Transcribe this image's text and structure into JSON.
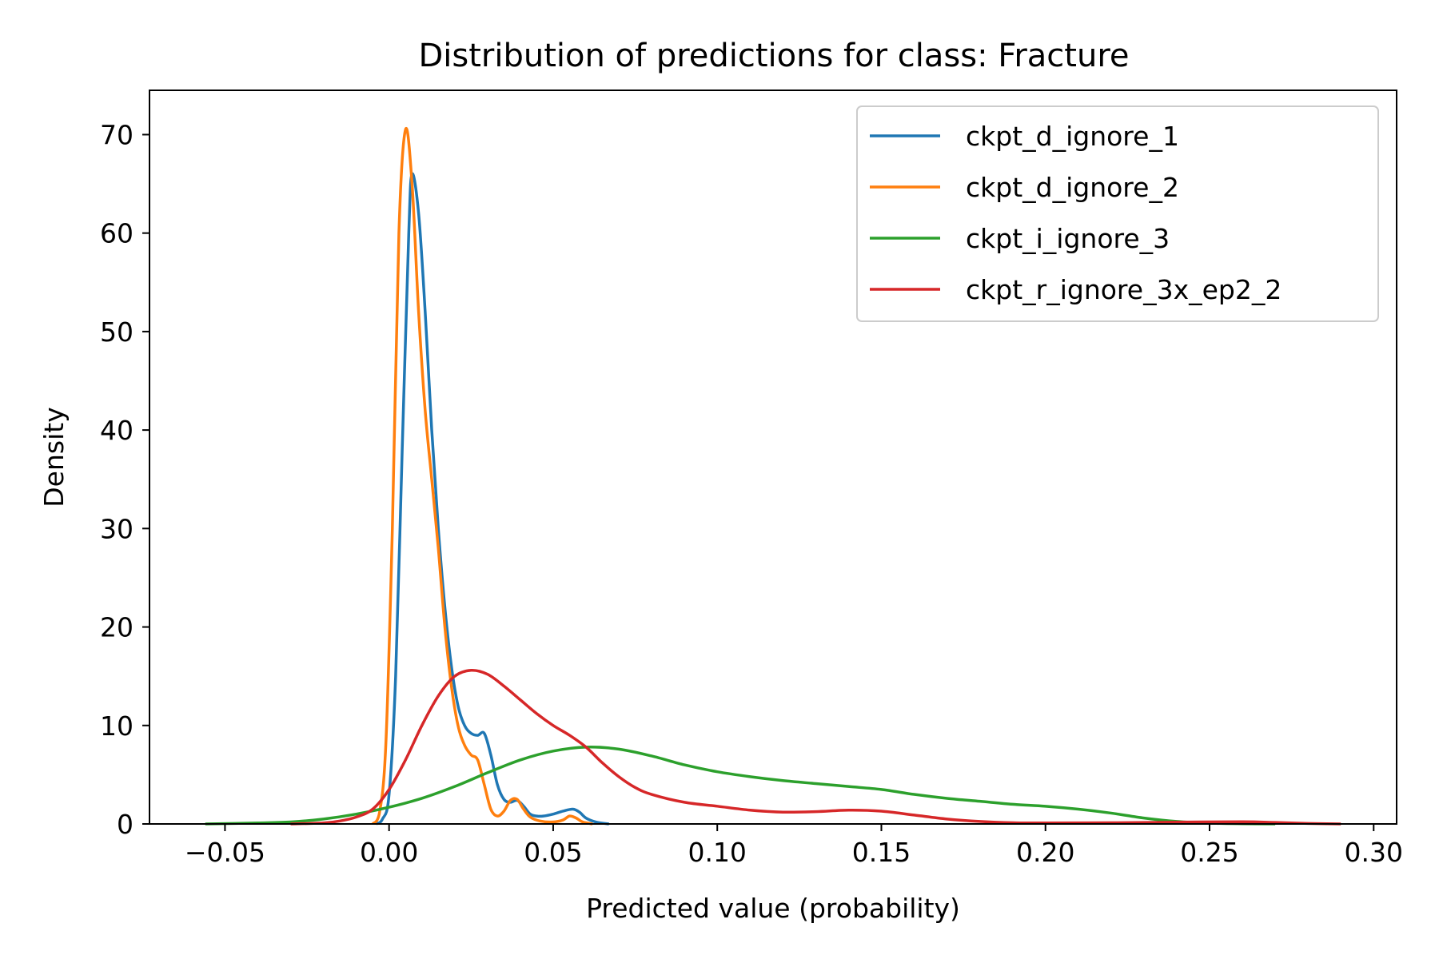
{
  "chart_data": {
    "type": "line",
    "title": "Distribution of predictions for class: Fracture",
    "xlabel": "Predicted value (probability)",
    "ylabel": "Density",
    "xlim": [
      -0.073,
      0.307
    ],
    "ylim": [
      0,
      74.5
    ],
    "x_ticks": [
      -0.05,
      0.0,
      0.05,
      0.1,
      0.15,
      0.2,
      0.25,
      0.3
    ],
    "x_tick_labels": [
      "−0.05",
      "0.00",
      "0.05",
      "0.10",
      "0.15",
      "0.20",
      "0.25",
      "0.30"
    ],
    "y_ticks": [
      0,
      10,
      20,
      30,
      40,
      50,
      60,
      70
    ],
    "y_tick_labels": [
      "0",
      "10",
      "20",
      "30",
      "40",
      "50",
      "60",
      "70"
    ],
    "grid": false,
    "legend_position": "top-right",
    "series": [
      {
        "name": "ckpt_d_ignore_1",
        "color": "#1f77b4",
        "points": [
          [
            -0.004,
            0
          ],
          [
            -0.002,
            0.5
          ],
          [
            0.0,
            3
          ],
          [
            0.002,
            15
          ],
          [
            0.004,
            38
          ],
          [
            0.006,
            60
          ],
          [
            0.007,
            66
          ],
          [
            0.009,
            62
          ],
          [
            0.011,
            52
          ],
          [
            0.013,
            40
          ],
          [
            0.015,
            30
          ],
          [
            0.017,
            22
          ],
          [
            0.019,
            16
          ],
          [
            0.021,
            12
          ],
          [
            0.023,
            10
          ],
          [
            0.025,
            9.2
          ],
          [
            0.027,
            9
          ],
          [
            0.029,
            9.2
          ],
          [
            0.031,
            7
          ],
          [
            0.033,
            4
          ],
          [
            0.035,
            2.5
          ],
          [
            0.037,
            2.2
          ],
          [
            0.039,
            2.4
          ],
          [
            0.041,
            1.8
          ],
          [
            0.043,
            1.0
          ],
          [
            0.045,
            0.8
          ],
          [
            0.047,
            0.8
          ],
          [
            0.05,
            1.0
          ],
          [
            0.053,
            1.3
          ],
          [
            0.056,
            1.5
          ],
          [
            0.058,
            1.2
          ],
          [
            0.06,
            0.6
          ],
          [
            0.063,
            0.2
          ],
          [
            0.067,
            0
          ]
        ]
      },
      {
        "name": "ckpt_d_ignore_2",
        "color": "#ff7f0e",
        "points": [
          [
            -0.005,
            0
          ],
          [
            -0.003,
            1
          ],
          [
            -0.001,
            8
          ],
          [
            0.001,
            30
          ],
          [
            0.003,
            60
          ],
          [
            0.005,
            70.5
          ],
          [
            0.007,
            65
          ],
          [
            0.009,
            52
          ],
          [
            0.011,
            42
          ],
          [
            0.013,
            35
          ],
          [
            0.015,
            28
          ],
          [
            0.017,
            20
          ],
          [
            0.019,
            14
          ],
          [
            0.021,
            10
          ],
          [
            0.023,
            8
          ],
          [
            0.025,
            7
          ],
          [
            0.027,
            6.5
          ],
          [
            0.029,
            4
          ],
          [
            0.031,
            1.5
          ],
          [
            0.033,
            0.8
          ],
          [
            0.035,
            1.3
          ],
          [
            0.037,
            2.4
          ],
          [
            0.039,
            2.5
          ],
          [
            0.041,
            1.5
          ],
          [
            0.043,
            0.7
          ],
          [
            0.046,
            0.3
          ],
          [
            0.05,
            0.2
          ],
          [
            0.053,
            0.4
          ],
          [
            0.055,
            0.8
          ],
          [
            0.057,
            0.6
          ],
          [
            0.059,
            0.2
          ],
          [
            0.062,
            0
          ]
        ]
      },
      {
        "name": "ckpt_i_ignore_3",
        "color": "#2ca02c",
        "points": [
          [
            -0.056,
            0
          ],
          [
            -0.04,
            0.1
          ],
          [
            -0.03,
            0.2
          ],
          [
            -0.02,
            0.5
          ],
          [
            -0.01,
            1.0
          ],
          [
            0.0,
            1.7
          ],
          [
            0.01,
            2.6
          ],
          [
            0.02,
            3.8
          ],
          [
            0.03,
            5.2
          ],
          [
            0.04,
            6.5
          ],
          [
            0.05,
            7.4
          ],
          [
            0.06,
            7.8
          ],
          [
            0.07,
            7.6
          ],
          [
            0.08,
            6.9
          ],
          [
            0.09,
            6.0
          ],
          [
            0.1,
            5.3
          ],
          [
            0.11,
            4.8
          ],
          [
            0.12,
            4.4
          ],
          [
            0.13,
            4.1
          ],
          [
            0.14,
            3.8
          ],
          [
            0.15,
            3.5
          ],
          [
            0.16,
            3.0
          ],
          [
            0.17,
            2.6
          ],
          [
            0.18,
            2.3
          ],
          [
            0.19,
            2.0
          ],
          [
            0.2,
            1.8
          ],
          [
            0.21,
            1.5
          ],
          [
            0.22,
            1.1
          ],
          [
            0.23,
            0.6
          ],
          [
            0.24,
            0.25
          ],
          [
            0.25,
            0.08
          ],
          [
            0.26,
            0.02
          ],
          [
            0.27,
            0
          ]
        ]
      },
      {
        "name": "ckpt_r_ignore_3x_ep2_2",
        "color": "#d62728",
        "points": [
          [
            -0.03,
            0
          ],
          [
            -0.02,
            0.1
          ],
          [
            -0.015,
            0.3
          ],
          [
            -0.01,
            0.7
          ],
          [
            -0.005,
            1.5
          ],
          [
            0.0,
            3.5
          ],
          [
            0.005,
            6.5
          ],
          [
            0.01,
            10
          ],
          [
            0.015,
            13
          ],
          [
            0.02,
            15
          ],
          [
            0.025,
            15.6
          ],
          [
            0.03,
            15.2
          ],
          [
            0.035,
            14
          ],
          [
            0.04,
            12.6
          ],
          [
            0.045,
            11.2
          ],
          [
            0.05,
            10
          ],
          [
            0.055,
            9
          ],
          [
            0.06,
            7.8
          ],
          [
            0.065,
            6.2
          ],
          [
            0.07,
            4.8
          ],
          [
            0.075,
            3.7
          ],
          [
            0.08,
            3
          ],
          [
            0.09,
            2.2
          ],
          [
            0.1,
            1.8
          ],
          [
            0.11,
            1.4
          ],
          [
            0.12,
            1.2
          ],
          [
            0.13,
            1.25
          ],
          [
            0.14,
            1.4
          ],
          [
            0.15,
            1.3
          ],
          [
            0.16,
            0.9
          ],
          [
            0.17,
            0.5
          ],
          [
            0.18,
            0.25
          ],
          [
            0.19,
            0.12
          ],
          [
            0.2,
            0.1
          ],
          [
            0.22,
            0.12
          ],
          [
            0.24,
            0.18
          ],
          [
            0.26,
            0.22
          ],
          [
            0.27,
            0.15
          ],
          [
            0.28,
            0.05
          ],
          [
            0.29,
            0
          ]
        ]
      }
    ]
  }
}
